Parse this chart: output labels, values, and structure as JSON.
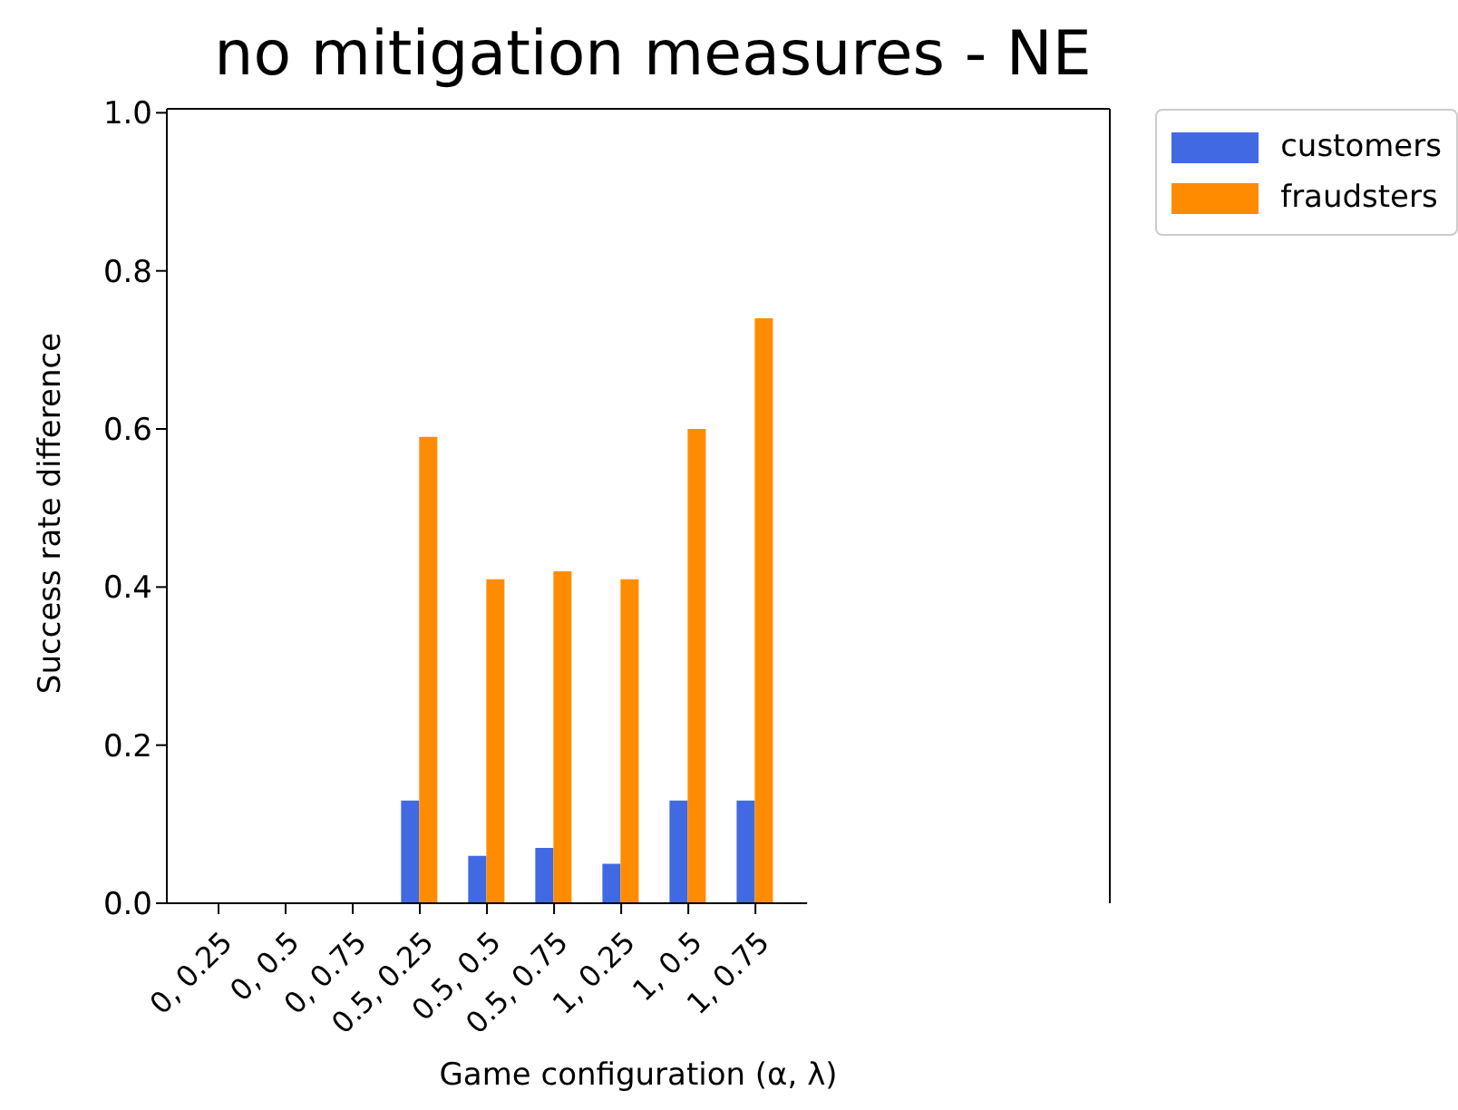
{
  "chart_data": {
    "type": "bar",
    "title": "no mitigation measures - NE",
    "xlabel": "Game configuration (α, λ)",
    "ylabel": "Success rate difference",
    "categories": [
      "0, 0.25",
      "0, 0.5",
      "0, 0.75",
      "0.5, 0.25",
      "0.5, 0.5",
      "0.5, 0.75",
      "1, 0.25",
      "1, 0.5",
      "1, 0.75"
    ],
    "series": [
      {
        "name": "customers",
        "color": "#4169e1",
        "values": [
          0,
          0,
          0,
          0.13,
          0.06,
          0.07,
          0.05,
          0.13,
          0.13
        ]
      },
      {
        "name": "fraudsters",
        "color": "#ff8c00",
        "values": [
          0,
          0,
          0,
          0.59,
          0.41,
          0.42,
          0.41,
          0.6,
          0.74
        ]
      }
    ],
    "ylim": [
      0,
      1.005
    ],
    "yticks": [
      {
        "value": 0,
        "label": "0.0"
      },
      {
        "value": 0.2,
        "label": "0.2"
      },
      {
        "value": 0.4,
        "label": "0.4"
      },
      {
        "value": 0.6,
        "label": "0.6"
      },
      {
        "value": 0.8,
        "label": "0.8"
      },
      {
        "value": 1,
        "label": "1.0"
      }
    ],
    "grid": false,
    "legend": "top right"
  }
}
